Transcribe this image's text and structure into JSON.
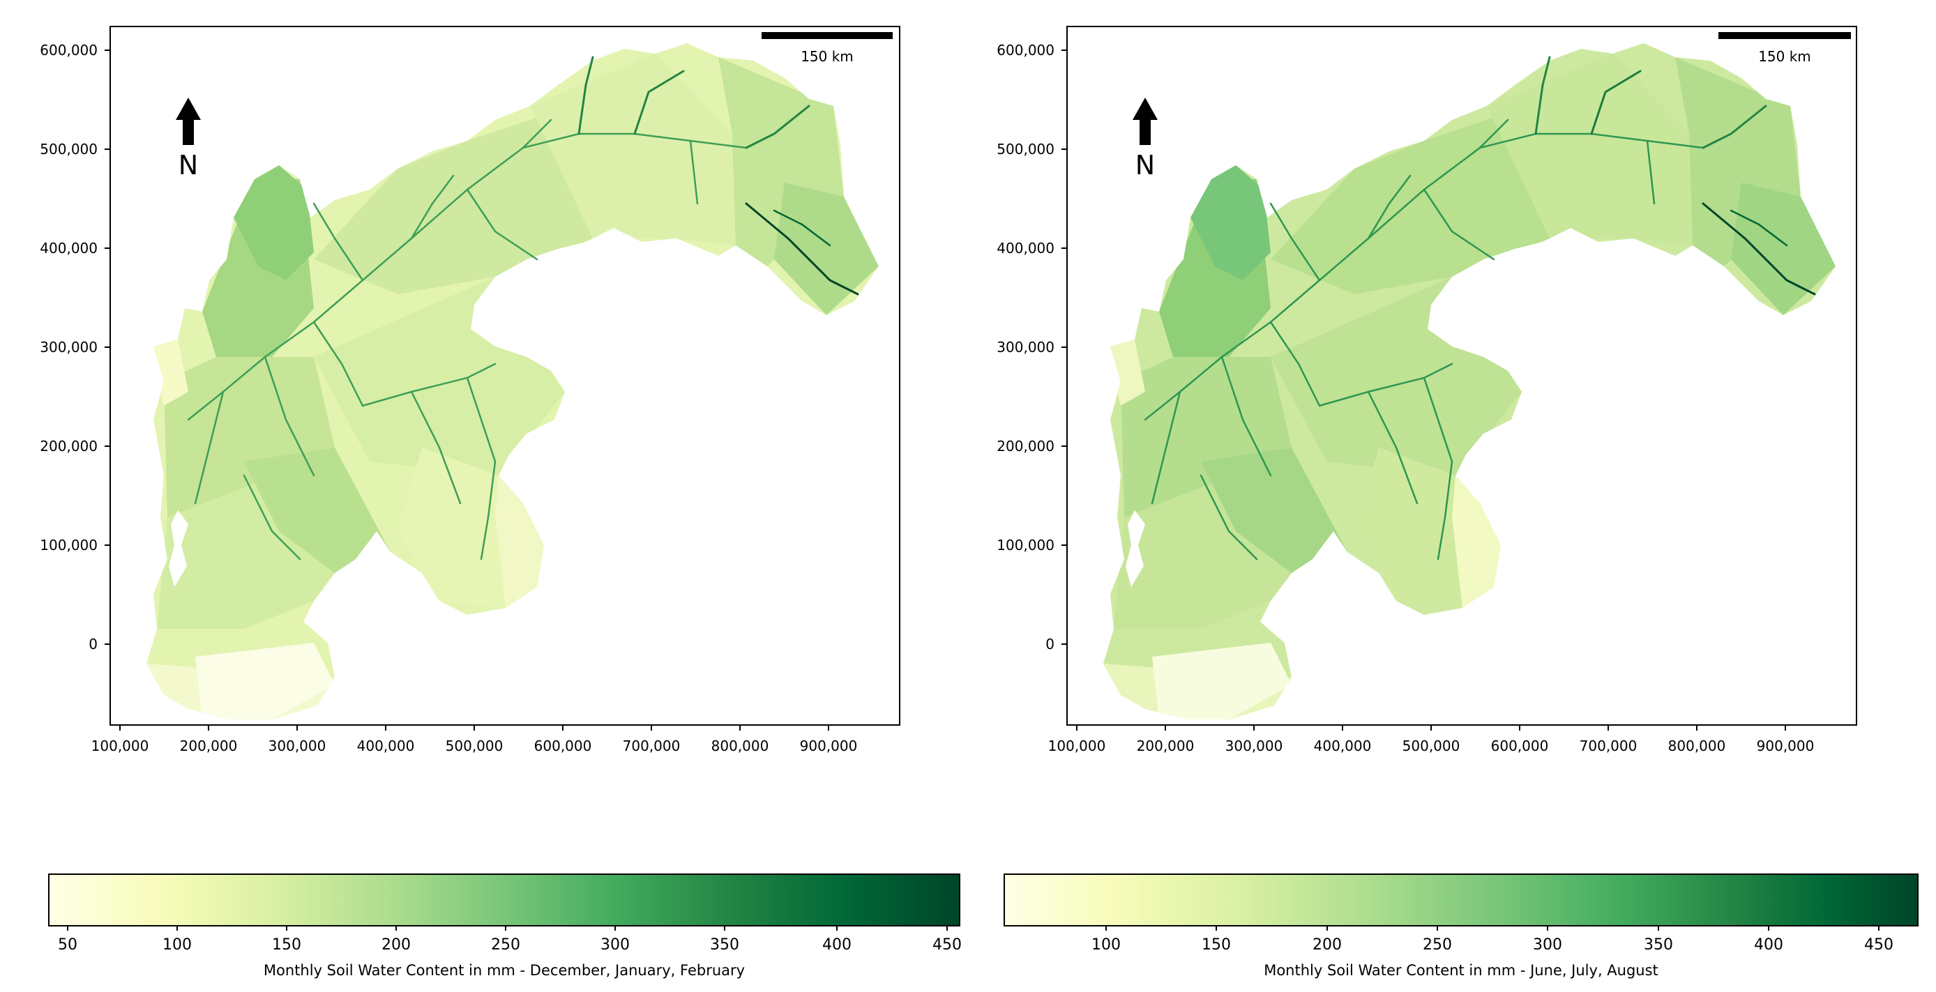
{
  "maps": [
    {
      "tick_labels_x": [
        "100,000",
        "200,000",
        "300,000",
        "400,000",
        "500,000",
        "600,000",
        "700,000",
        "800,000",
        "900,000"
      ],
      "tick_labels_y": [
        "600,000",
        "500,000",
        "400,000",
        "300,000",
        "200,000",
        "100,000",
        "0"
      ],
      "scale_bar_label": "150 km",
      "north_label": "N",
      "colorbar": {
        "ticks": [
          "50",
          "100",
          "150",
          "200",
          "250",
          "300",
          "350",
          "400",
          "450"
        ],
        "label": "Monthly Soil Water Content in mm - December, January, February"
      }
    },
    {
      "tick_labels_x": [
        "100,000",
        "200,000",
        "300,000",
        "400,000",
        "500,000",
        "600,000",
        "700,000",
        "800,000",
        "900,000"
      ],
      "tick_labels_y": [
        "600,000",
        "500,000",
        "400,000",
        "300,000",
        "200,000",
        "100,000",
        "0"
      ],
      "scale_bar_label": "150 km",
      "north_label": "N",
      "colorbar": {
        "ticks": [
          "100",
          "150",
          "200",
          "250",
          "300",
          "350",
          "400",
          "450"
        ],
        "label": "Monthly Soil Water Content in mm - June, July, August"
      }
    }
  ],
  "colors": {
    "ylgn_0": "#ffffe5",
    "ylgn_1": "#f7fcb9",
    "ylgn_2": "#d9f0a3",
    "ylgn_3": "#addd8e",
    "ylgn_4": "#78c679",
    "ylgn_5": "#41ab5d",
    "ylgn_6": "#238443",
    "ylgn_7": "#006837",
    "ylgn_8": "#004529"
  }
}
